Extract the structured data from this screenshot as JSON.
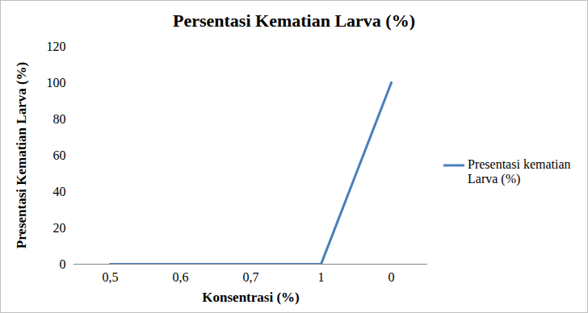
{
  "chart_data": {
    "type": "line",
    "title": "Persentasi Kematian Larva (%)",
    "categories": [
      "0,5",
      "0,6",
      "0,7",
      "1",
      "0"
    ],
    "series": [
      {
        "name": "Presentasi kematian Larva (%)",
        "color": "#4a7ebb",
        "values": [
          0,
          0,
          0,
          0,
          100
        ]
      }
    ],
    "x_label": "Konsentrasi (%)",
    "y_label": "Presentasi Kematian Larva (%)",
    "ylim": [
      0,
      120
    ],
    "yticks": [
      0,
      20,
      40,
      60,
      80,
      100,
      120
    ],
    "grid": false,
    "legend": "right"
  }
}
